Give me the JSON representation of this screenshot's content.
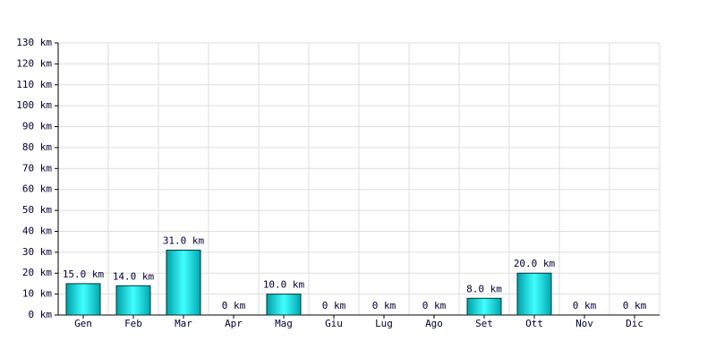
{
  "chart_data": {
    "type": "bar",
    "categories": [
      "Gen",
      "Feb",
      "Mar",
      "Apr",
      "Mag",
      "Giu",
      "Lug",
      "Ago",
      "Set",
      "Ott",
      "Nov",
      "Dic"
    ],
    "values": [
      15,
      14,
      31,
      0,
      10,
      0,
      0,
      0,
      8,
      20,
      0,
      0
    ],
    "value_labels": [
      "15.0 km",
      "14.0 km",
      "31.0 km",
      "0 km",
      "10.0 km",
      "0 km",
      "0 km",
      "0 km",
      "8.0 km",
      "20.0 km",
      "0 km",
      "0 km"
    ],
    "color": "#00c8cc",
    "ylim": [
      0,
      130
    ],
    "yticks": [
      {
        "value": 0,
        "label": "0 km"
      },
      {
        "value": 10,
        "label": "10 km"
      },
      {
        "value": 20,
        "label": "20 km"
      },
      {
        "value": 30,
        "label": "30 km"
      },
      {
        "value": 40,
        "label": "40 km"
      },
      {
        "value": 50,
        "label": "50 km"
      },
      {
        "value": 60,
        "label": "60 km"
      },
      {
        "value": 70,
        "label": "70 km"
      },
      {
        "value": 80,
        "label": "80 km"
      },
      {
        "value": 90,
        "label": "90 km"
      },
      {
        "value": 100,
        "label": "100 km"
      },
      {
        "value": 110,
        "label": "110 km"
      },
      {
        "value": 120,
        "label": "120 km"
      },
      {
        "value": 130,
        "label": "130 km"
      }
    ],
    "grid": true
  }
}
